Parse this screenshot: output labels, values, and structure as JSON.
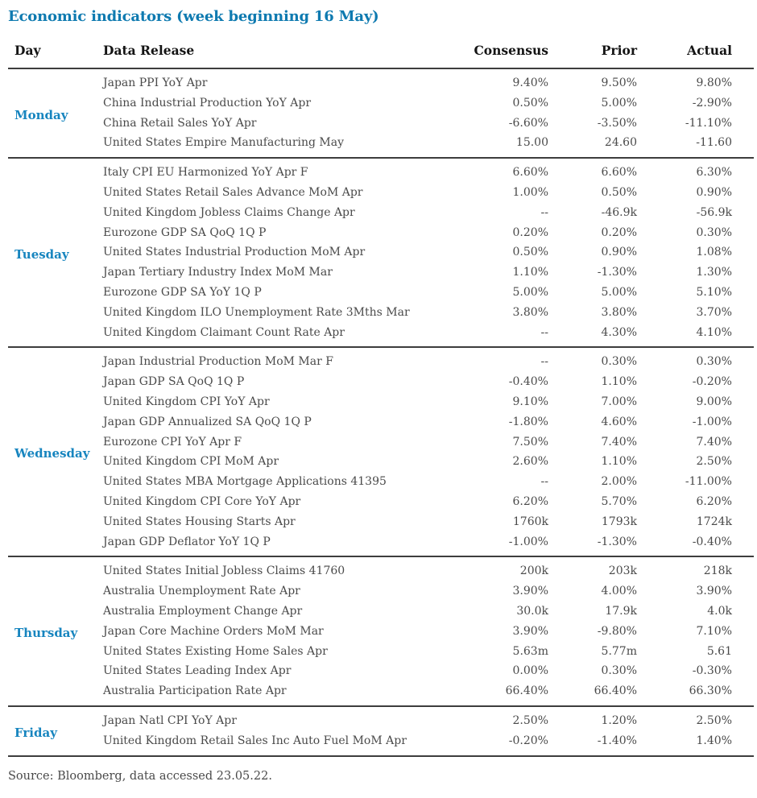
{
  "colors": {
    "title_blue": "#0e7ab0",
    "day_blue": "#1785bf",
    "rule_gray": "#3d3d3d",
    "body_text": "#4a4a4a"
  },
  "chart_data": {
    "type": "table",
    "title": "Economic indicators (week beginning 16 May)",
    "columns": [
      "Day",
      "Data Release",
      "Consensus",
      "Prior",
      "Actual"
    ],
    "sections": [
      {
        "day": "Monday",
        "rows": [
          [
            "Japan PPI YoY Apr",
            "9.40%",
            "9.50%",
            "9.80%"
          ],
          [
            "China Industrial Production YoY Apr",
            "0.50%",
            "5.00%",
            "-2.90%"
          ],
          [
            "China Retail Sales YoY Apr",
            "-6.60%",
            "-3.50%",
            "-11.10%"
          ],
          [
            "United States Empire Manufacturing May",
            "15.00",
            "24.60",
            "-11.60"
          ]
        ]
      },
      {
        "day": "Tuesday",
        "rows": [
          [
            "Italy CPI EU Harmonized YoY Apr F",
            "6.60%",
            "6.60%",
            "6.30%"
          ],
          [
            "United States Retail Sales Advance MoM Apr",
            "1.00%",
            "0.50%",
            "0.90%"
          ],
          [
            "United Kingdom Jobless Claims Change Apr",
            "--",
            "-46.9k",
            "-56.9k"
          ],
          [
            "Eurozone GDP SA QoQ 1Q P",
            "0.20%",
            "0.20%",
            "0.30%"
          ],
          [
            "United States Industrial Production MoM Apr",
            "0.50%",
            "0.90%",
            "1.08%"
          ],
          [
            "Japan Tertiary Industry Index MoM Mar",
            "1.10%",
            "-1.30%",
            "1.30%"
          ],
          [
            "Eurozone GDP SA YoY 1Q P",
            "5.00%",
            "5.00%",
            "5.10%"
          ],
          [
            "United Kingdom ILO Unemployment Rate 3Mths Mar",
            "3.80%",
            "3.80%",
            "3.70%"
          ],
          [
            "United Kingdom Claimant Count Rate Apr",
            "--",
            "4.30%",
            "4.10%"
          ]
        ]
      },
      {
        "day": "Wednesday",
        "rows": [
          [
            "Japan Industrial Production MoM Mar F",
            "--",
            "0.30%",
            "0.30%"
          ],
          [
            "Japan GDP SA QoQ 1Q P",
            "-0.40%",
            "1.10%",
            "-0.20%"
          ],
          [
            "United Kingdom CPI YoY Apr",
            "9.10%",
            "7.00%",
            "9.00%"
          ],
          [
            "Japan GDP Annualized SA QoQ 1Q P",
            "-1.80%",
            "4.60%",
            "-1.00%"
          ],
          [
            "Eurozone CPI YoY Apr F",
            "7.50%",
            "7.40%",
            "7.40%"
          ],
          [
            "United Kingdom CPI MoM Apr",
            "2.60%",
            "1.10%",
            "2.50%"
          ],
          [
            "United States MBA Mortgage Applications 41395",
            "--",
            "2.00%",
            "-11.00%"
          ],
          [
            "United Kingdom CPI Core YoY Apr",
            "6.20%",
            "5.70%",
            "6.20%"
          ],
          [
            "United States Housing Starts Apr",
            "1760k",
            "1793k",
            "1724k"
          ],
          [
            "Japan GDP Deflator YoY 1Q P",
            "-1.00%",
            "-1.30%",
            "-0.40%"
          ]
        ]
      },
      {
        "day": "Thursday",
        "rows": [
          [
            "United States Initial Jobless Claims 41760",
            "200k",
            "203k",
            "218k"
          ],
          [
            "Australia Unemployment Rate Apr",
            "3.90%",
            "4.00%",
            "3.90%"
          ],
          [
            "Australia Employment Change Apr",
            "30.0k",
            "17.9k",
            "4.0k"
          ],
          [
            "Japan Core Machine Orders MoM Mar",
            "3.90%",
            "-9.80%",
            "7.10%"
          ],
          [
            "United States Existing Home Sales Apr",
            "5.63m",
            "5.77m",
            "5.61"
          ],
          [
            "United States Leading Index Apr",
            "0.00%",
            "0.30%",
            "-0.30%"
          ],
          [
            "Australia Participation Rate Apr",
            "66.40%",
            "66.40%",
            "66.30%"
          ]
        ]
      },
      {
        "day": "Friday",
        "rows": [
          [
            "Japan Natl CPI YoY Apr",
            "2.50%",
            "1.20%",
            "2.50%"
          ],
          [
            "United Kingdom Retail Sales Inc Auto Fuel MoM Apr",
            "-0.20%",
            "-1.40%",
            "1.40%"
          ]
        ]
      }
    ],
    "source": "Source: Bloomberg, data accessed 23.05.22."
  }
}
